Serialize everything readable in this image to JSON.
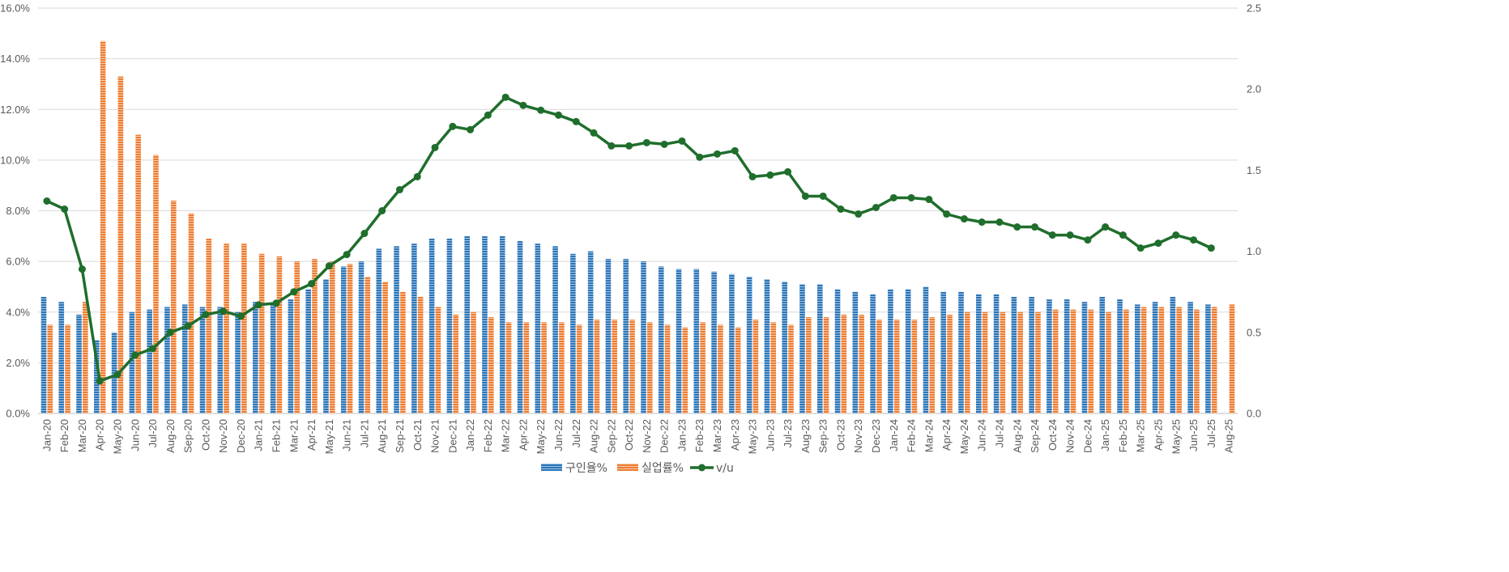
{
  "chart_data": {
    "type": "bar",
    "title": "",
    "categories": [
      "Jan-20",
      "Feb-20",
      "Mar-20",
      "Apr-20",
      "May-20",
      "Jun-20",
      "Jul-20",
      "Aug-20",
      "Sep-20",
      "Oct-20",
      "Nov-20",
      "Dec-20",
      "Jan-21",
      "Feb-21",
      "Mar-21",
      "Apr-21",
      "May-21",
      "Jun-21",
      "Jul-21",
      "Aug-21",
      "Sep-21",
      "Oct-21",
      "Nov-21",
      "Dec-21",
      "Jan-22",
      "Feb-22",
      "Mar-22",
      "Apr-22",
      "May-22",
      "Jun-22",
      "Jul-22",
      "Aug-22",
      "Sep-22",
      "Oct-22",
      "Nov-22",
      "Dec-22",
      "Jan-23",
      "Feb-23",
      "Mar-23",
      "Apr-23",
      "May-23",
      "Jun-23",
      "Jul-23",
      "Aug-23",
      "Sep-23",
      "Oct-23",
      "Nov-23",
      "Dec-23",
      "Jan-24",
      "Feb-24",
      "Mar-24",
      "Apr-24",
      "May-24",
      "Jun-24",
      "Jul-24",
      "Aug-24",
      "Sep-24",
      "Oct-24",
      "Nov-24",
      "Dec-24",
      "Jan-25",
      "Feb-25",
      "Mar-25",
      "Apr-25",
      "May-25",
      "Jun-25",
      "Jul-25",
      "Aug-25"
    ],
    "series": [
      {
        "name": "구인율%",
        "type": "bar",
        "axis": "left",
        "color": "#2E75B6",
        "values": [
          4.6,
          4.4,
          3.9,
          2.9,
          3.2,
          4.0,
          4.1,
          4.2,
          4.3,
          4.2,
          4.2,
          4.0,
          4.4,
          4.3,
          4.5,
          4.9,
          5.3,
          5.8,
          6.0,
          6.5,
          6.6,
          6.7,
          6.9,
          6.9,
          7.0,
          7.0,
          7.0,
          6.8,
          6.7,
          6.6,
          6.3,
          6.4,
          6.1,
          6.1,
          6.0,
          5.8,
          5.7,
          5.7,
          5.6,
          5.5,
          5.4,
          5.3,
          5.2,
          5.1,
          5.1,
          4.9,
          4.8,
          4.7,
          4.9,
          4.9,
          5.0,
          4.8,
          4.8,
          4.7,
          4.7,
          4.6,
          4.6,
          4.5,
          4.5,
          4.4,
          4.6,
          4.5,
          4.3,
          4.4,
          4.6,
          4.4,
          4.3,
          null
        ]
      },
      {
        "name": "실업률%",
        "type": "bar",
        "axis": "left",
        "color": "#ED7D31",
        "values": [
          3.5,
          3.5,
          4.4,
          14.7,
          13.3,
          11.0,
          10.2,
          8.4,
          7.9,
          6.9,
          6.7,
          6.7,
          6.3,
          6.2,
          6.0,
          6.1,
          6.0,
          5.9,
          5.4,
          5.2,
          4.8,
          4.6,
          4.2,
          3.9,
          4.0,
          3.8,
          3.6,
          3.6,
          3.6,
          3.6,
          3.5,
          3.7,
          3.7,
          3.7,
          3.6,
          3.5,
          3.4,
          3.6,
          3.5,
          3.4,
          3.7,
          3.6,
          3.5,
          3.8,
          3.8,
          3.9,
          3.9,
          3.7,
          3.7,
          3.7,
          3.8,
          3.9,
          4.0,
          4.0,
          4.0,
          4.0,
          4.0,
          4.1,
          4.1,
          4.1,
          4.0,
          4.1,
          4.2,
          4.2,
          4.2,
          4.1,
          4.2,
          4.3
        ]
      },
      {
        "name": "v/u",
        "type": "line",
        "axis": "right",
        "color": "#1F6E2C",
        "values": [
          1.31,
          1.26,
          0.89,
          0.2,
          0.24,
          0.36,
          0.4,
          0.5,
          0.54,
          0.61,
          0.63,
          0.6,
          0.67,
          0.68,
          0.75,
          0.8,
          0.91,
          0.98,
          1.11,
          1.25,
          1.38,
          1.46,
          1.64,
          1.77,
          1.75,
          1.84,
          1.95,
          1.9,
          1.87,
          1.84,
          1.8,
          1.73,
          1.65,
          1.65,
          1.67,
          1.66,
          1.68,
          1.58,
          1.6,
          1.62,
          1.46,
          1.47,
          1.49,
          1.34,
          1.34,
          1.26,
          1.23,
          1.27,
          1.33,
          1.33,
          1.32,
          1.23,
          1.2,
          1.18,
          1.18,
          1.15,
          1.15,
          1.1,
          1.1,
          1.07,
          1.15,
          1.1,
          1.02,
          1.05,
          1.1,
          1.07,
          1.02,
          null
        ]
      }
    ],
    "yAxisLeft": {
      "min": 0,
      "max": 16,
      "step": 2,
      "labels": [
        "0.0%",
        "2.0%",
        "4.0%",
        "6.0%",
        "8.0%",
        "10.0%",
        "12.0%",
        "14.0%",
        "16.0%"
      ]
    },
    "yAxisRight": {
      "min": 0,
      "max": 2.5,
      "step": 0.5,
      "labels": [
        "0.0",
        "0.5",
        "1.0",
        "1.5",
        "2.0",
        "2.5"
      ]
    },
    "grid": true,
    "legend": "bottom-center",
    "xlabel": "",
    "ylabel": ""
  }
}
